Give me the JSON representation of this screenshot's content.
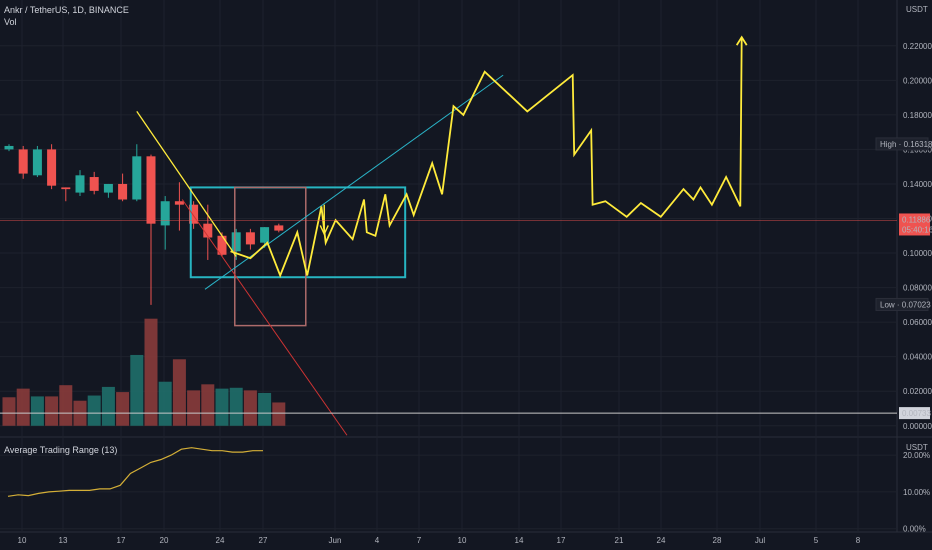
{
  "header": {
    "symbol_line": "Ankr / TetherUS, 1D, BINANCE",
    "volume_label": "Vol",
    "indicator_label": "Average Trading Range (13)"
  },
  "chart_data": {
    "type": "candlestick",
    "price_axis": {
      "unit_label": "USDT",
      "ticks": [
        "0.22000",
        "0.20000",
        "0.18000",
        "0.16000",
        "0.14000",
        "0.12000",
        "0.10000",
        "0.08000",
        "0.06000",
        "0.04000",
        "0.02000",
        "0.00000"
      ],
      "range": [
        -0.0065,
        0.2465
      ]
    },
    "indicator_axis": {
      "unit_label": "USDT",
      "ticks": [
        "20.00%",
        "10.00%",
        "0.00%"
      ],
      "range": [
        -0.9,
        24.1
      ]
    },
    "time_axis": {
      "ticks": [
        "10",
        "13",
        "17",
        "20",
        "24",
        "27",
        "Jun",
        "4",
        "7",
        "10",
        "14",
        "17",
        "21",
        "24",
        "28",
        "Jul",
        "5",
        "8"
      ]
    },
    "markers": {
      "high": {
        "label": "High",
        "value": "0.16318"
      },
      "last": {
        "value": "0.11886",
        "countdown": "05:40:16"
      },
      "low": {
        "label": "Low",
        "value": "0.07023"
      },
      "line": {
        "value": "0.00733"
      }
    },
    "candles": [
      {
        "o": 0.16,
        "h": 0.163,
        "l": 0.159,
        "c": 0.162
      },
      {
        "o": 0.16,
        "h": 0.162,
        "l": 0.143,
        "c": 0.146
      },
      {
        "o": 0.145,
        "h": 0.162,
        "l": 0.144,
        "c": 0.16
      },
      {
        "o": 0.16,
        "h": 0.163,
        "l": 0.137,
        "c": 0.139
      },
      {
        "o": 0.138,
        "h": 0.138,
        "l": 0.13,
        "c": 0.137
      },
      {
        "o": 0.135,
        "h": 0.148,
        "l": 0.133,
        "c": 0.145
      },
      {
        "o": 0.144,
        "h": 0.147,
        "l": 0.134,
        "c": 0.136
      },
      {
        "o": 0.135,
        "h": 0.14,
        "l": 0.132,
        "c": 0.14
      },
      {
        "o": 0.14,
        "h": 0.146,
        "l": 0.13,
        "c": 0.131
      },
      {
        "o": 0.131,
        "h": 0.163,
        "l": 0.13,
        "c": 0.156
      },
      {
        "o": 0.156,
        "h": 0.157,
        "l": 0.07,
        "c": 0.117
      },
      {
        "o": 0.116,
        "h": 0.133,
        "l": 0.102,
        "c": 0.13
      },
      {
        "o": 0.13,
        "h": 0.141,
        "l": 0.113,
        "c": 0.128
      },
      {
        "o": 0.128,
        "h": 0.13,
        "l": 0.114,
        "c": 0.117
      },
      {
        "o": 0.117,
        "h": 0.128,
        "l": 0.096,
        "c": 0.109
      },
      {
        "o": 0.11,
        "h": 0.112,
        "l": 0.098,
        "c": 0.099
      },
      {
        "o": 0.101,
        "h": 0.114,
        "l": 0.096,
        "c": 0.112
      },
      {
        "o": 0.112,
        "h": 0.114,
        "l": 0.102,
        "c": 0.105
      },
      {
        "o": 0.106,
        "h": 0.115,
        "l": 0.103,
        "c": 0.115
      },
      {
        "o": 0.116,
        "h": 0.117,
        "l": 0.112,
        "c": 0.113
      }
    ],
    "volume": [
      {
        "v": 0.0165,
        "up": false
      },
      {
        "v": 0.0215,
        "up": false
      },
      {
        "v": 0.017,
        "up": true
      },
      {
        "v": 0.017,
        "up": false
      },
      {
        "v": 0.0235,
        "up": false
      },
      {
        "v": 0.0145,
        "up": false
      },
      {
        "v": 0.0175,
        "up": true
      },
      {
        "v": 0.0225,
        "up": true
      },
      {
        "v": 0.0195,
        "up": false
      },
      {
        "v": 0.041,
        "up": true
      },
      {
        "v": 0.062,
        "up": false
      },
      {
        "v": 0.0255,
        "up": true
      },
      {
        "v": 0.0385,
        "up": false
      },
      {
        "v": 0.0205,
        "up": false
      },
      {
        "v": 0.024,
        "up": false
      },
      {
        "v": 0.0215,
        "up": true
      },
      {
        "v": 0.022,
        "up": true
      },
      {
        "v": 0.0205,
        "up": false
      },
      {
        "v": 0.019,
        "up": true
      },
      {
        "v": 0.0135,
        "up": false
      }
    ],
    "atr_pct": [
      8.8,
      9.2,
      9.0,
      9.6,
      10.0,
      10.2,
      10.4,
      10.4,
      10.4,
      10.8,
      10.8,
      11.8,
      15.0,
      16.5,
      18.0,
      18.8,
      20.0,
      21.6,
      22.0,
      21.6,
      21.2,
      21.2,
      20.8,
      20.8,
      21.2,
      21.2
    ],
    "drawings": {
      "projection_path_label": "yellow projected path",
      "colors": {
        "up": "#26a69a",
        "down": "#ef5350",
        "projection": "#ffeb3b",
        "trend": "#2ab3c7",
        "box_cyan": "#27b5c1",
        "box_red": "#ad6b6b",
        "diag": "#cc3333",
        "atr": "#d4af37"
      }
    }
  }
}
